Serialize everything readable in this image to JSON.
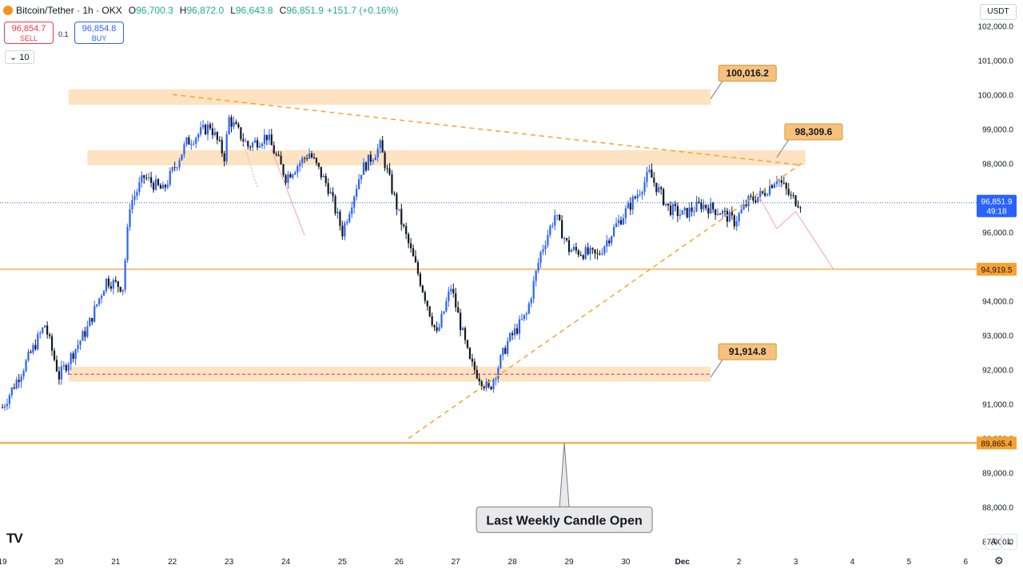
{
  "header": {
    "symbol": "Bitcoin/Tether · 1h · OKX",
    "o_label": "O",
    "o": "96,700.3",
    "h_label": "H",
    "h": "96,872.0",
    "l_label": "L",
    "l": "96,643.8",
    "c_label": "C",
    "c": "96,851.9",
    "change": "+151.7 (+0.16%)"
  },
  "trade": {
    "sell_price": "96,854.7",
    "sell_label": "SELL",
    "qty": "0.1",
    "buy_price": "96,854.8",
    "buy_label": "BUY"
  },
  "interval_value": "10",
  "currency": "USDT",
  "logo_text": "TV",
  "buttons": {
    "auto": "A",
    "log": "L"
  },
  "colors": {
    "up": "#2962ff",
    "down": "#131722",
    "accent": "#f7a230",
    "zone": "#fde3c1",
    "current_price": "#2962ff"
  },
  "chart_data": {
    "type": "candlestick",
    "title": "Bitcoin/Tether · 1h · OKX",
    "y_axis": {
      "range": [
        86200,
        102750
      ],
      "ticks": [
        87000,
        88000,
        89000,
        90000,
        91000,
        92000,
        93000,
        94000,
        95000,
        96000,
        97000,
        98000,
        99000,
        100000,
        101000,
        102000
      ],
      "tick_labels": [
        "87,000.0",
        "88,000.0",
        "89,000.0",
        "90,000.0",
        "91,000.0",
        "92,000.0",
        "93,000.0",
        "94,000.0",
        "95,000.0",
        "96,000.0",
        "97,000.0",
        "98,000.0",
        "99,000.0",
        "100,000.0",
        "101,000.0",
        "102,000.0"
      ]
    },
    "x_axis": {
      "tick_labels": [
        "19",
        "20",
        "21",
        "22",
        "23",
        "24",
        "25",
        "26",
        "27",
        "28",
        "29",
        "30",
        "Dec",
        "2",
        "3",
        "4",
        "5",
        "6"
      ],
      "tick_dates": [
        "2024-11-19",
        "2024-11-20",
        "2024-11-21",
        "2024-11-22",
        "2024-11-23",
        "2024-11-24",
        "2024-11-25",
        "2024-11-26",
        "2024-11-27",
        "2024-11-28",
        "2024-11-29",
        "2024-11-30",
        "2024-12-01",
        "2024-12-02",
        "2024-12-03",
        "2024-12-04",
        "2024-12-05",
        "2024-12-06"
      ]
    },
    "price_path": [
      [
        "2024-11-19T00:00",
        90900
      ],
      [
        "2024-11-19T10:00",
        92200
      ],
      [
        "2024-11-19T18:00",
        93300
      ],
      [
        "2024-11-20T00:00",
        91800
      ],
      [
        "2024-11-20T12:00",
        93200
      ],
      [
        "2024-11-20T20:00",
        94600
      ],
      [
        "2024-11-21T03:00",
        94400
      ],
      [
        "2024-11-21T06:00",
        96800
      ],
      [
        "2024-11-21T12:00",
        97600
      ],
      [
        "2024-11-21T20:00",
        97200
      ],
      [
        "2024-11-22T06:00",
        98600
      ],
      [
        "2024-11-22T16:00",
        99100
      ],
      [
        "2024-11-22T22:00",
        98200
      ],
      [
        "2024-11-23T00:00",
        99300
      ],
      [
        "2024-11-23T08:00",
        98500
      ],
      [
        "2024-11-23T16:00",
        98800
      ],
      [
        "2024-11-24T00:00",
        97600
      ],
      [
        "2024-11-24T10:00",
        98300
      ],
      [
        "2024-11-24T18:00",
        97300
      ],
      [
        "2024-11-25T00:00",
        96000
      ],
      [
        "2024-11-25T08:00",
        97800
      ],
      [
        "2024-11-25T16:00",
        98500
      ],
      [
        "2024-11-26T00:00",
        96500
      ],
      [
        "2024-11-26T08:00",
        94800
      ],
      [
        "2024-11-26T16:00",
        93000
      ],
      [
        "2024-11-26T22:00",
        94400
      ],
      [
        "2024-11-27T06:00",
        92200
      ],
      [
        "2024-11-27T14:00",
        91400
      ],
      [
        "2024-11-27T22:00",
        92800
      ],
      [
        "2024-11-28T06:00",
        93600
      ],
      [
        "2024-11-28T12:00",
        95400
      ],
      [
        "2024-11-28T18:00",
        96500
      ],
      [
        "2024-11-29T00:00",
        95500
      ],
      [
        "2024-11-29T12:00",
        95300
      ],
      [
        "2024-11-29T20:00",
        96200
      ],
      [
        "2024-11-30T04:00",
        97000
      ],
      [
        "2024-11-30T10:00",
        97700
      ],
      [
        "2024-11-30T18:00",
        96700
      ],
      [
        "2024-12-01T00:00",
        96500
      ],
      [
        "2024-12-01T08:00",
        96800
      ],
      [
        "2024-12-01T16:00",
        96600
      ],
      [
        "2024-12-01T22:00",
        96300
      ],
      [
        "2024-12-02T04:00",
        96900
      ],
      [
        "2024-12-02T10:00",
        97100
      ],
      [
        "2024-12-02T16:00",
        97600
      ],
      [
        "2024-12-02T22:00",
        97000
      ],
      [
        "2024-12-03T02:00",
        96850
      ]
    ],
    "candle_interval_hours": 1,
    "level_labels": [
      "100,016.2",
      "98,309.6",
      "91,914.8"
    ],
    "price_lines": [
      {
        "value": 94919.5,
        "label": "94,919.5"
      },
      {
        "value": 89865.4,
        "label": "89,865.4"
      }
    ],
    "zones": [
      {
        "from": "2024-11-20T04:00",
        "to": "2024-12-01T12:00",
        "low": 99700,
        "high": 100150,
        "label": "100,016.2"
      },
      {
        "from": "2024-11-20T12:00",
        "to": "2024-12-03T04:00",
        "low": 97940,
        "high": 98380,
        "label": "98,309.6"
      },
      {
        "from": "2024-11-20T04:00",
        "to": "2024-12-01T12:00",
        "low": 91650,
        "high": 92080,
        "label": "91,914.8"
      }
    ],
    "current_price": {
      "value": 96851.9,
      "label": "96,851.9",
      "countdown": "49:18"
    },
    "annotation": "Last Weekly Candle Open",
    "legend": "none",
    "grid": false
  }
}
